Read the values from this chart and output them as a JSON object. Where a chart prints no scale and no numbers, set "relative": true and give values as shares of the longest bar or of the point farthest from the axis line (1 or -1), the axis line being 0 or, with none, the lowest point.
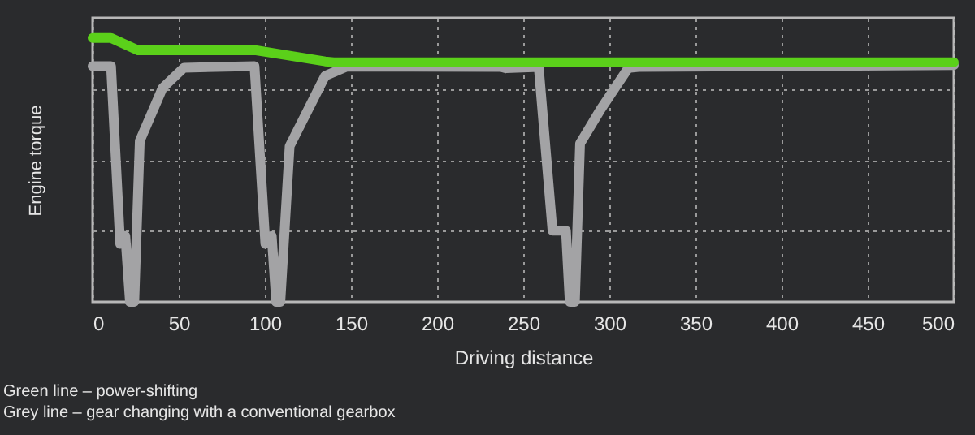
{
  "chart_data": {
    "type": "line",
    "relative": true,
    "xlabel": "Driving distance",
    "ylabel": "Engine torque",
    "xlim": [
      0,
      500
    ],
    "xticks": [
      0,
      50,
      100,
      150,
      200,
      250,
      300,
      350,
      400,
      450,
      500
    ],
    "grid": true,
    "line_style": "solid",
    "marker": "none",
    "series": [
      {
        "color": "#a3a3a5",
        "x": [
          0,
          10.7,
          16,
          19,
          21.7,
          24.2,
          27.4,
          40.6,
          53,
          94,
          100.3,
          104,
          106.6,
          109,
          114.4,
          135,
          147.4,
          237,
          240,
          259,
          267,
          274.8,
          277,
          280,
          283,
          295,
          311,
          317,
          500
        ],
        "values": [
          0.893,
          0.893,
          0.22,
          0.25,
          0,
          0,
          0.61,
          0.81,
          0.887,
          0.893,
          0.22,
          0.25,
          0,
          0,
          0.59,
          0.856,
          0.891,
          0.89,
          0.885,
          0.89,
          0.27,
          0.27,
          0,
          0,
          0.6,
          0.73,
          0.886,
          0.89,
          0.897
        ]
      },
      {
        "color": "#5bd01a",
        "x": [
          0,
          10.7,
          26.4,
          95,
          113,
          135,
          140,
          500
        ],
        "values": [
          1,
          1,
          0.953,
          0.953,
          0.934,
          0.911,
          0.908,
          0.908
        ]
      }
    ],
    "annotations": [
      "Green line – power-shifting",
      "Grey line – gear changing with a conventional gearbox"
    ]
  }
}
